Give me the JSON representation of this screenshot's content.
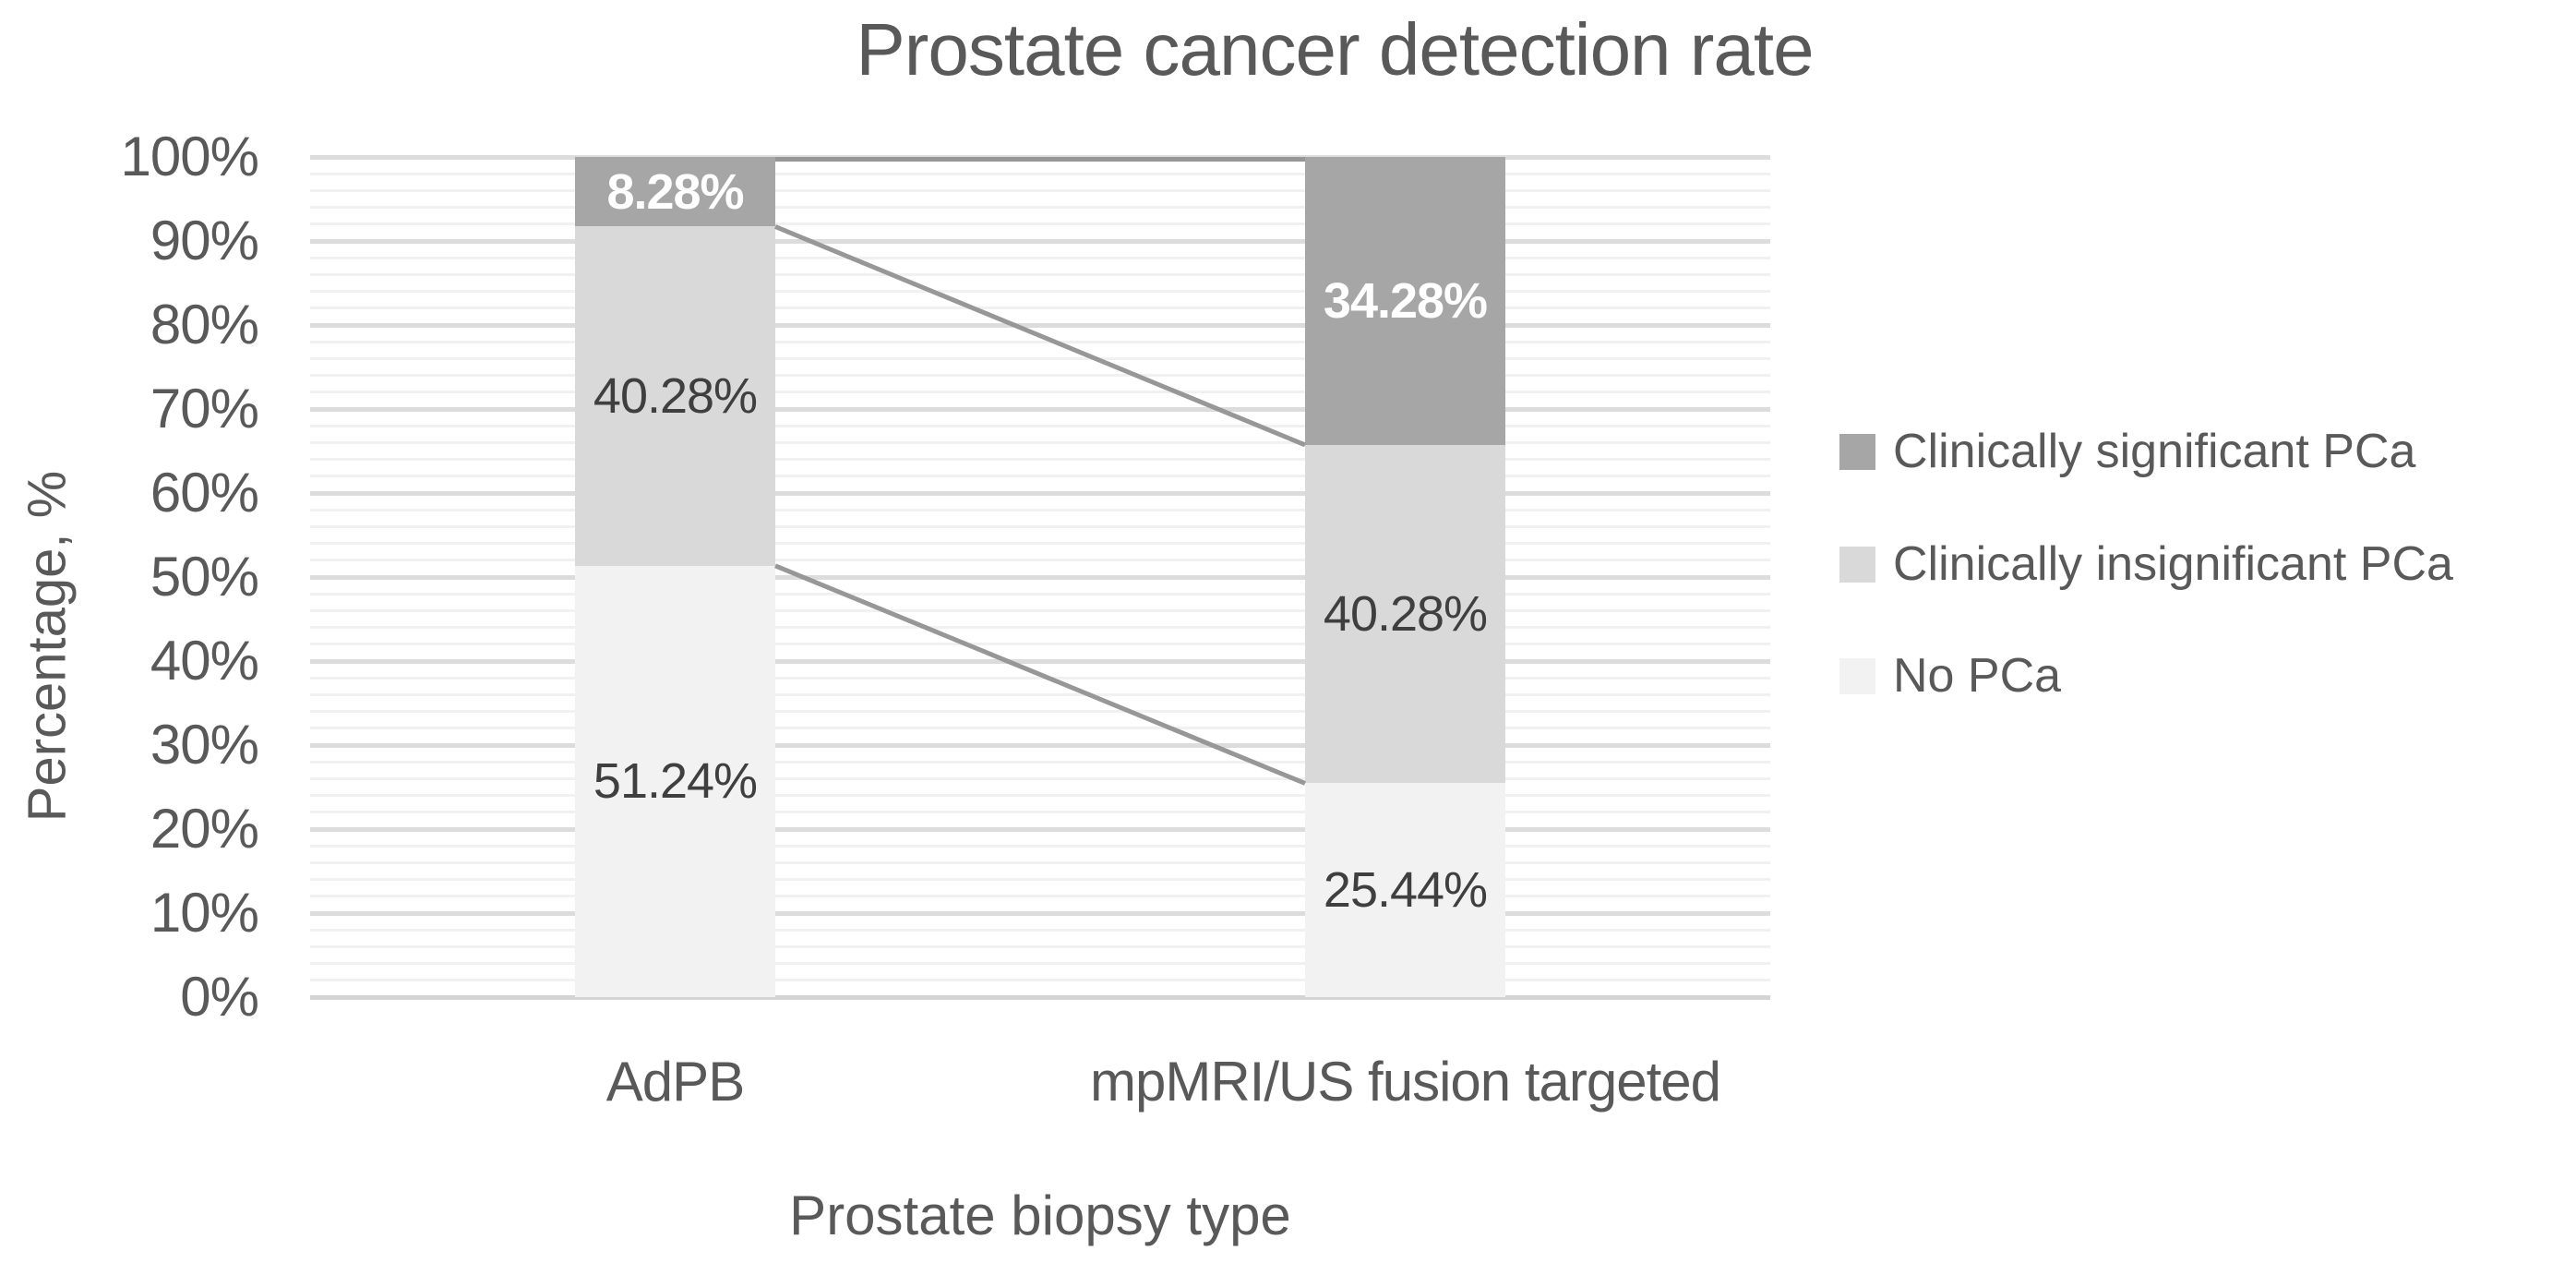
{
  "title": "Prostate cancer detection rate",
  "y_axis": {
    "title": "Percentage, %",
    "ticks": [
      "0%",
      "10%",
      "20%",
      "30%",
      "40%",
      "50%",
      "60%",
      "70%",
      "80%",
      "90%",
      "100%"
    ],
    "min": 0,
    "max": 100,
    "major_step": 10,
    "minor_step": 2
  },
  "x_axis": {
    "title": "Prostate biopsy type",
    "categories": [
      "AdPB",
      "mpMRI/US fusion targeted"
    ]
  },
  "legend": [
    {
      "label": "Clinically significant PCa",
      "color": "#a6a6a6"
    },
    {
      "label": "Clinically insignificant PCa",
      "color": "#d9d9d9"
    },
    {
      "label": "No PCa",
      "color": "#f2f2f2"
    }
  ],
  "chart_data": {
    "type": "bar",
    "subtype": "100%-stacked-column",
    "title": "Prostate cancer detection rate",
    "xlabel": "Prostate biopsy type",
    "ylabel": "Percentage, %",
    "categories": [
      "AdPB",
      "mpMRI/US fusion targeted"
    ],
    "series": [
      {
        "name": "No PCa",
        "color": "#f2f2f2",
        "values": [
          51.24,
          25.44
        ],
        "data_labels": [
          "51.24%",
          "25.44%"
        ],
        "label_color": "#3f3f3f",
        "label_bold": false
      },
      {
        "name": "Clinically insignificant PCa",
        "color": "#d9d9d9",
        "values": [
          40.28,
          40.28
        ],
        "data_labels": [
          "40.28%",
          "40.28%"
        ],
        "label_color": "#3f3f3f",
        "label_bold": false
      },
      {
        "name": "Clinically significant PCa",
        "color": "#a6a6a6",
        "values": [
          8.28,
          34.28
        ],
        "data_labels": [
          "8.28%",
          "34.28%"
        ],
        "label_color": "#ffffff",
        "label_bold": true
      }
    ],
    "ylim": [
      0,
      100
    ],
    "grid": {
      "major_pct": 10,
      "minor_pct": 2,
      "major_color": "#dcdcdc",
      "minor_color": "#f1f1f1",
      "baseline_color": "#d4d4d4"
    },
    "series_lines": {
      "show": true,
      "color": "#979797",
      "width": 5
    },
    "legend_position": "right",
    "gap_between_categories": true
  }
}
